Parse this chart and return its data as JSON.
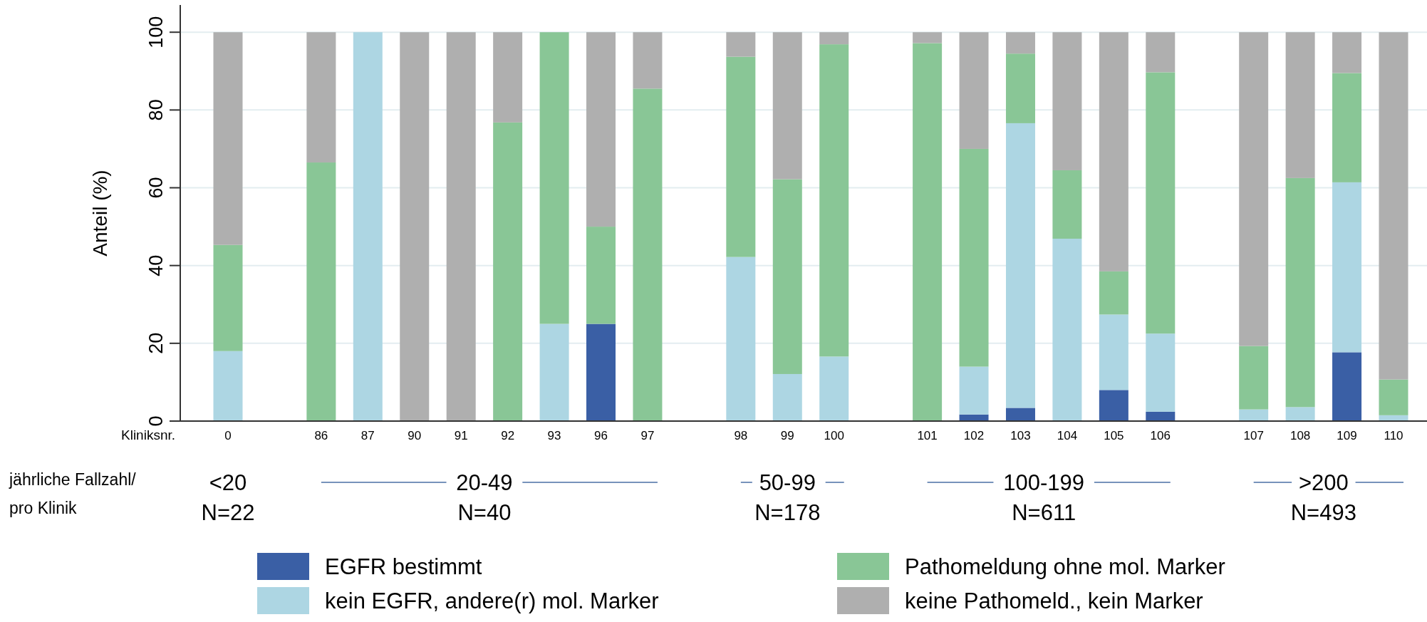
{
  "chart_data": {
    "type": "bar",
    "stacked": true,
    "ylabel": "Anteil (%)",
    "categories": [
      "0",
      null,
      "86",
      "87",
      "90",
      "91",
      "92",
      "93",
      "96",
      "97",
      null,
      "98",
      "99",
      "100",
      null,
      "101",
      "102",
      "103",
      "104",
      "105",
      "106",
      null,
      "107",
      "108",
      "109",
      "110"
    ],
    "series": [
      {
        "name": "EGFR bestimmt",
        "color": "#3a5fa5",
        "values": [
          0,
          null,
          0,
          0,
          0,
          0,
          0,
          0,
          25,
          0,
          null,
          0,
          0,
          0,
          null,
          0,
          1.7,
          3.4,
          0,
          8,
          2.4,
          null,
          0,
          0,
          17.7,
          0
        ]
      },
      {
        "name": "kein EGFR, andere(r) mol. Marker",
        "color": "#add6e3",
        "values": [
          18,
          null,
          0,
          100,
          0,
          0,
          0,
          25,
          0,
          0,
          null,
          42.2,
          12.1,
          16.6,
          null,
          0,
          12.3,
          73.2,
          46.9,
          19.4,
          20.1,
          null,
          3,
          3.6,
          43.7,
          1.5
        ]
      },
      {
        "name": "Pathomeldung ohne mol. Marker",
        "color": "#89c696",
        "values": [
          27.3,
          null,
          66.5,
          0,
          0,
          0,
          76.8,
          75,
          25,
          85.5,
          null,
          51.5,
          50.1,
          80.3,
          null,
          97.2,
          56,
          17.9,
          17.6,
          11.1,
          67.2,
          null,
          16.3,
          58.9,
          28.1,
          9.2
        ]
      },
      {
        "name": "keine Pathomeld., kein Marker",
        "color": "#afafaf",
        "values": [
          54.7,
          null,
          33.5,
          0,
          100,
          100,
          23.2,
          0,
          50,
          14.5,
          null,
          6.3,
          37.8,
          3.1,
          null,
          2.8,
          30,
          5.5,
          35.5,
          61.5,
          10.3,
          null,
          80.7,
          37.5,
          10.5,
          89.3
        ]
      }
    ],
    "ylim": [
      0,
      107
    ],
    "yticks": [
      0,
      20,
      40,
      60,
      80,
      100
    ],
    "grid": "y",
    "legend": "bottom",
    "annotations": [
      "Kliniksnr.",
      "jährliche Fallzahl/",
      "pro Klinik",
      "<20",
      "N=22",
      "20-49",
      "N=40",
      "50-99",
      "N=178",
      "100-199",
      "N=611",
      ">200",
      "N=493"
    ]
  }
}
